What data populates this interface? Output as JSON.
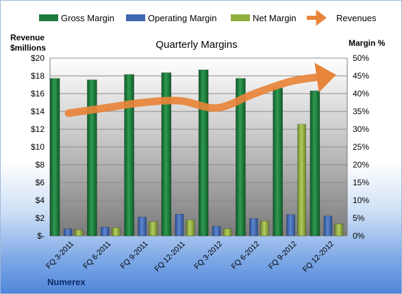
{
  "chart_data": {
    "type": "bar",
    "title": "Quarterly Margins",
    "left_axis_label": [
      "Revenue",
      "$millions"
    ],
    "right_axis_label": "Margin %",
    "footer": "Numerex",
    "categories": [
      "FQ 3-2011",
      "FQ 6-2011",
      "FQ 9-2011",
      "FQ 12-2011",
      "FQ 3-2012",
      "FQ 6-2012",
      "FQ 9-2012",
      "FQ 12-2012"
    ],
    "left_axis": {
      "min": 0,
      "max": 20,
      "step": 2,
      "tick_labels": [
        "$-",
        "$2",
        "$4",
        "$6",
        "$8",
        "$10",
        "$12",
        "$14",
        "$16",
        "$18",
        "$20"
      ]
    },
    "right_axis": {
      "min": 0,
      "max": 50,
      "step": 5,
      "tick_labels": [
        "0%",
        "5%",
        "10%",
        "15%",
        "20%",
        "25%",
        "30%",
        "35%",
        "40%",
        "45%",
        "50%"
      ]
    },
    "series": [
      {
        "name": "Gross Margin",
        "axis": "right",
        "kind": "bar",
        "color": "#1e7a3c",
        "values": [
          44.3,
          43.9,
          45.4,
          45.9,
          46.7,
          44.3,
          41.6,
          40.8
        ]
      },
      {
        "name": "Operating Margin",
        "axis": "right",
        "kind": "bar",
        "color": "#3f67b0",
        "values": [
          2.0,
          2.5,
          5.3,
          6.1,
          2.7,
          4.9,
          6.0,
          5.6
        ]
      },
      {
        "name": "Net Margin",
        "axis": "right",
        "kind": "bar",
        "color": "#8fae3e",
        "values": [
          1.7,
          2.3,
          4.0,
          4.5,
          2.0,
          4.2,
          31.4,
          3.4
        ]
      },
      {
        "name": "Revenues",
        "axis": "left",
        "kind": "line",
        "color": "#e8843a",
        "values": [
          13.8,
          14.4,
          15.0,
          15.2,
          14.4,
          16.0,
          17.4,
          18.0
        ]
      }
    ],
    "grid": true,
    "legend_position": "top"
  }
}
